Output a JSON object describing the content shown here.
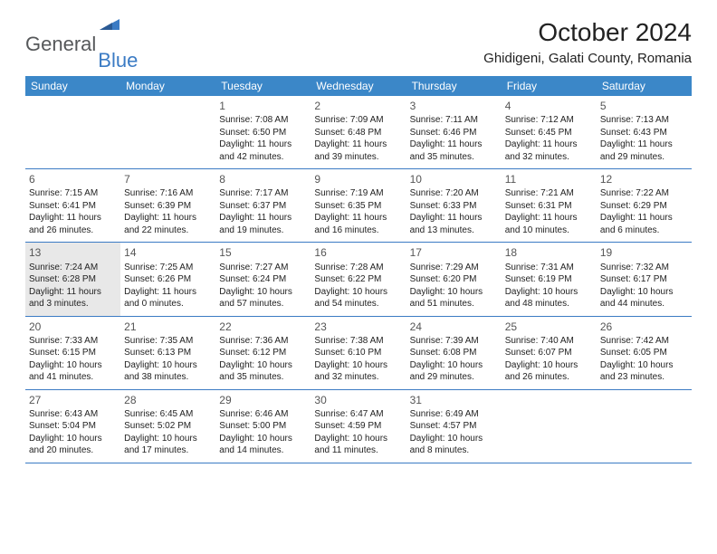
{
  "logo": {
    "text1": "General",
    "text2": "Blue"
  },
  "title": "October 2024",
  "subtitle": "Ghidigeni, Galati County, Romania",
  "colors": {
    "header_bg": "#3b87c8",
    "header_text": "#ffffff",
    "border": "#3b7bc4",
    "logo_gray": "#56585a",
    "logo_blue": "#3b7bc4",
    "cell_text": "#222222"
  },
  "day_names": [
    "Sunday",
    "Monday",
    "Tuesday",
    "Wednesday",
    "Thursday",
    "Friday",
    "Saturday"
  ],
  "weeks": [
    [
      null,
      null,
      {
        "n": "1",
        "sr": "7:08 AM",
        "ss": "6:50 PM",
        "dl": "11 hours and 42 minutes."
      },
      {
        "n": "2",
        "sr": "7:09 AM",
        "ss": "6:48 PM",
        "dl": "11 hours and 39 minutes."
      },
      {
        "n": "3",
        "sr": "7:11 AM",
        "ss": "6:46 PM",
        "dl": "11 hours and 35 minutes."
      },
      {
        "n": "4",
        "sr": "7:12 AM",
        "ss": "6:45 PM",
        "dl": "11 hours and 32 minutes."
      },
      {
        "n": "5",
        "sr": "7:13 AM",
        "ss": "6:43 PM",
        "dl": "11 hours and 29 minutes."
      }
    ],
    [
      {
        "n": "6",
        "sr": "7:15 AM",
        "ss": "6:41 PM",
        "dl": "11 hours and 26 minutes."
      },
      {
        "n": "7",
        "sr": "7:16 AM",
        "ss": "6:39 PM",
        "dl": "11 hours and 22 minutes."
      },
      {
        "n": "8",
        "sr": "7:17 AM",
        "ss": "6:37 PM",
        "dl": "11 hours and 19 minutes."
      },
      {
        "n": "9",
        "sr": "7:19 AM",
        "ss": "6:35 PM",
        "dl": "11 hours and 16 minutes."
      },
      {
        "n": "10",
        "sr": "7:20 AM",
        "ss": "6:33 PM",
        "dl": "11 hours and 13 minutes."
      },
      {
        "n": "11",
        "sr": "7:21 AM",
        "ss": "6:31 PM",
        "dl": "11 hours and 10 minutes."
      },
      {
        "n": "12",
        "sr": "7:22 AM",
        "ss": "6:29 PM",
        "dl": "11 hours and 6 minutes."
      }
    ],
    [
      {
        "n": "13",
        "sr": "7:24 AM",
        "ss": "6:28 PM",
        "dl": "11 hours and 3 minutes.",
        "hl": true
      },
      {
        "n": "14",
        "sr": "7:25 AM",
        "ss": "6:26 PM",
        "dl": "11 hours and 0 minutes."
      },
      {
        "n": "15",
        "sr": "7:27 AM",
        "ss": "6:24 PM",
        "dl": "10 hours and 57 minutes."
      },
      {
        "n": "16",
        "sr": "7:28 AM",
        "ss": "6:22 PM",
        "dl": "10 hours and 54 minutes."
      },
      {
        "n": "17",
        "sr": "7:29 AM",
        "ss": "6:20 PM",
        "dl": "10 hours and 51 minutes."
      },
      {
        "n": "18",
        "sr": "7:31 AM",
        "ss": "6:19 PM",
        "dl": "10 hours and 48 minutes."
      },
      {
        "n": "19",
        "sr": "7:32 AM",
        "ss": "6:17 PM",
        "dl": "10 hours and 44 minutes."
      }
    ],
    [
      {
        "n": "20",
        "sr": "7:33 AM",
        "ss": "6:15 PM",
        "dl": "10 hours and 41 minutes."
      },
      {
        "n": "21",
        "sr": "7:35 AM",
        "ss": "6:13 PM",
        "dl": "10 hours and 38 minutes."
      },
      {
        "n": "22",
        "sr": "7:36 AM",
        "ss": "6:12 PM",
        "dl": "10 hours and 35 minutes."
      },
      {
        "n": "23",
        "sr": "7:38 AM",
        "ss": "6:10 PM",
        "dl": "10 hours and 32 minutes."
      },
      {
        "n": "24",
        "sr": "7:39 AM",
        "ss": "6:08 PM",
        "dl": "10 hours and 29 minutes."
      },
      {
        "n": "25",
        "sr": "7:40 AM",
        "ss": "6:07 PM",
        "dl": "10 hours and 26 minutes."
      },
      {
        "n": "26",
        "sr": "7:42 AM",
        "ss": "6:05 PM",
        "dl": "10 hours and 23 minutes."
      }
    ],
    [
      {
        "n": "27",
        "sr": "6:43 AM",
        "ss": "5:04 PM",
        "dl": "10 hours and 20 minutes."
      },
      {
        "n": "28",
        "sr": "6:45 AM",
        "ss": "5:02 PM",
        "dl": "10 hours and 17 minutes."
      },
      {
        "n": "29",
        "sr": "6:46 AM",
        "ss": "5:00 PM",
        "dl": "10 hours and 14 minutes."
      },
      {
        "n": "30",
        "sr": "6:47 AM",
        "ss": "4:59 PM",
        "dl": "10 hours and 11 minutes."
      },
      {
        "n": "31",
        "sr": "6:49 AM",
        "ss": "4:57 PM",
        "dl": "10 hours and 8 minutes."
      },
      null,
      null
    ]
  ],
  "labels": {
    "sunrise": "Sunrise:",
    "sunset": "Sunset:",
    "daylight": "Daylight:"
  }
}
